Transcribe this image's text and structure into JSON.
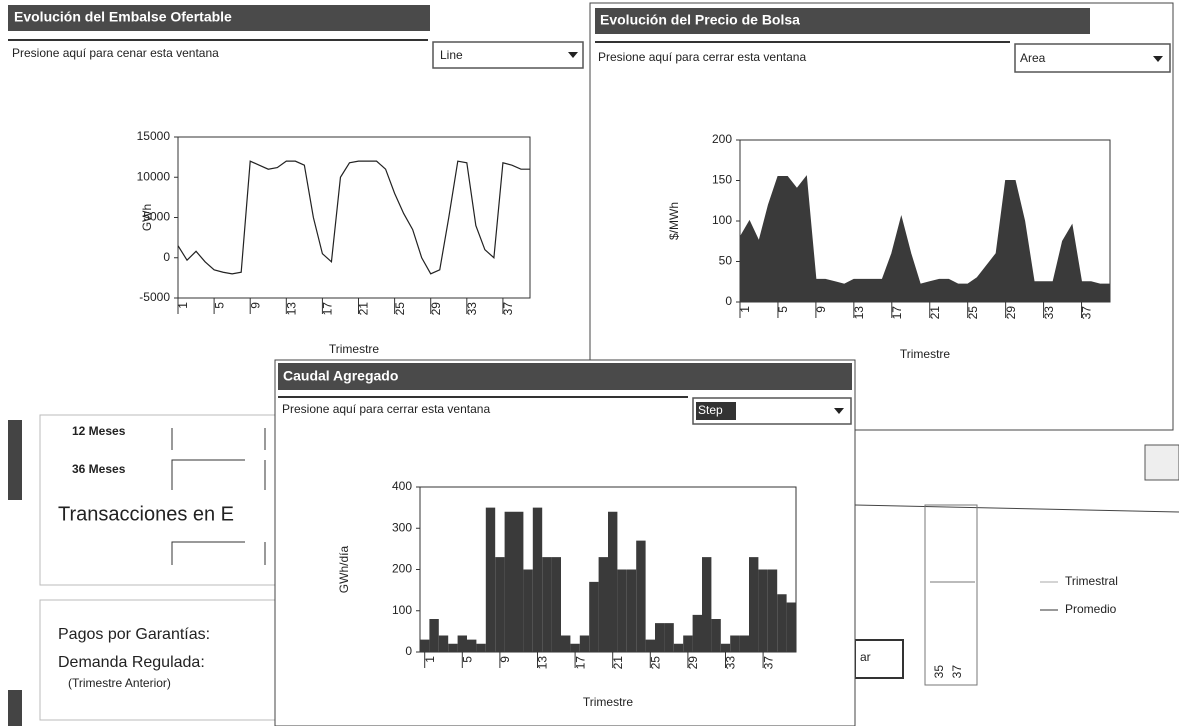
{
  "background": {
    "rows": [
      "12 Meses",
      "36 Meses"
    ],
    "heading": "Transacciones en E",
    "labels": [
      "Pagos por Garantías:",
      "Demanda Regulada:",
      "(Trimestre Anterior)"
    ],
    "legend": [
      "Trimestral",
      "Promedio"
    ],
    "ticks": [
      "35",
      "37"
    ],
    "fragment": "ar"
  },
  "windows": [
    {
      "title": "Evolución del Embalse Ofertable",
      "close_text": "Presione aquí para cenar esta ventana",
      "dropdown": "Line",
      "chart": {
        "type": "line",
        "ylabel": "GWh",
        "xlabel": "Trimestre",
        "x": [
          1,
          2,
          3,
          4,
          5,
          6,
          7,
          8,
          9,
          10,
          11,
          12,
          13,
          14,
          15,
          16,
          17,
          18,
          19,
          20,
          21,
          22,
          23,
          24,
          25,
          26,
          27,
          28,
          29,
          30,
          31,
          32,
          33,
          34,
          35,
          36,
          37,
          38,
          39,
          40
        ],
        "values": [
          1500,
          -300,
          800,
          -500,
          -1500,
          -1800,
          -2000,
          -1800,
          12000,
          11500,
          11000,
          11200,
          12000,
          12000,
          11500,
          5000,
          500,
          -500,
          10000,
          11800,
          12000,
          12000,
          12000,
          11000,
          8000,
          5500,
          3500,
          0,
          -2000,
          -1500,
          5000,
          12000,
          11800,
          4000,
          1000,
          0,
          11800,
          11500,
          11000,
          11000
        ],
        "xlim": [
          1,
          40
        ],
        "xticks": [
          1,
          5,
          9,
          13,
          17,
          21,
          25,
          29,
          33,
          37
        ],
        "ylim": [
          -5000,
          15000
        ],
        "yticks": [
          -5000,
          0,
          5000,
          10000,
          15000
        ],
        "color": "#222222"
      }
    },
    {
      "title": "Evolución del Precio de Bolsa",
      "close_text": "Presione aquí para cerrar esta ventana",
      "dropdown": "Area",
      "chart": {
        "type": "area",
        "ylabel": "$/MWh",
        "xlabel": "Trimestre",
        "x": [
          1,
          2,
          3,
          4,
          5,
          6,
          7,
          8,
          9,
          10,
          11,
          12,
          13,
          14,
          15,
          16,
          17,
          18,
          19,
          20,
          21,
          22,
          23,
          24,
          25,
          26,
          27,
          28,
          29,
          30,
          31,
          32,
          33,
          34,
          35,
          36,
          37,
          38,
          39,
          40
        ],
        "values": [
          80,
          100,
          75,
          120,
          155,
          155,
          140,
          155,
          28,
          28,
          25,
          22,
          28,
          28,
          28,
          28,
          60,
          105,
          60,
          22,
          25,
          28,
          28,
          22,
          22,
          30,
          45,
          60,
          150,
          150,
          100,
          25,
          25,
          25,
          75,
          95,
          25,
          25,
          22,
          22
        ],
        "xlim": [
          1,
          40
        ],
        "xticks": [
          1,
          5,
          9,
          13,
          17,
          21,
          25,
          29,
          33,
          37
        ],
        "ylim": [
          0,
          200
        ],
        "yticks": [
          0,
          50,
          100,
          150,
          200
        ],
        "color": "#3a3a3a"
      }
    },
    {
      "title": "Caudal Agregado",
      "close_text": "Presione aquí para cerrar esta ventana",
      "dropdown": "Step",
      "chart": {
        "type": "step",
        "ylabel": "GWh/día",
        "xlabel": "Trimestre",
        "x": [
          1,
          2,
          3,
          4,
          5,
          6,
          7,
          8,
          9,
          10,
          11,
          12,
          13,
          14,
          15,
          16,
          17,
          18,
          19,
          20,
          21,
          22,
          23,
          24,
          25,
          26,
          27,
          28,
          29,
          30,
          31,
          32,
          33,
          34,
          35,
          36,
          37,
          38,
          39,
          40
        ],
        "values": [
          30,
          80,
          40,
          20,
          40,
          30,
          20,
          350,
          230,
          340,
          340,
          200,
          350,
          230,
          230,
          40,
          20,
          40,
          170,
          230,
          340,
          200,
          200,
          270,
          30,
          70,
          70,
          20,
          40,
          90,
          230,
          80,
          20,
          40,
          40,
          230,
          200,
          200,
          140,
          120
        ],
        "xlim": [
          0.5,
          40.5
        ],
        "xticks": [
          1,
          5,
          9,
          13,
          17,
          21,
          25,
          29,
          33,
          37
        ],
        "ylim": [
          0,
          400
        ],
        "yticks": [
          0,
          100,
          200,
          300,
          400
        ],
        "color": "#3a3a3a"
      }
    }
  ]
}
